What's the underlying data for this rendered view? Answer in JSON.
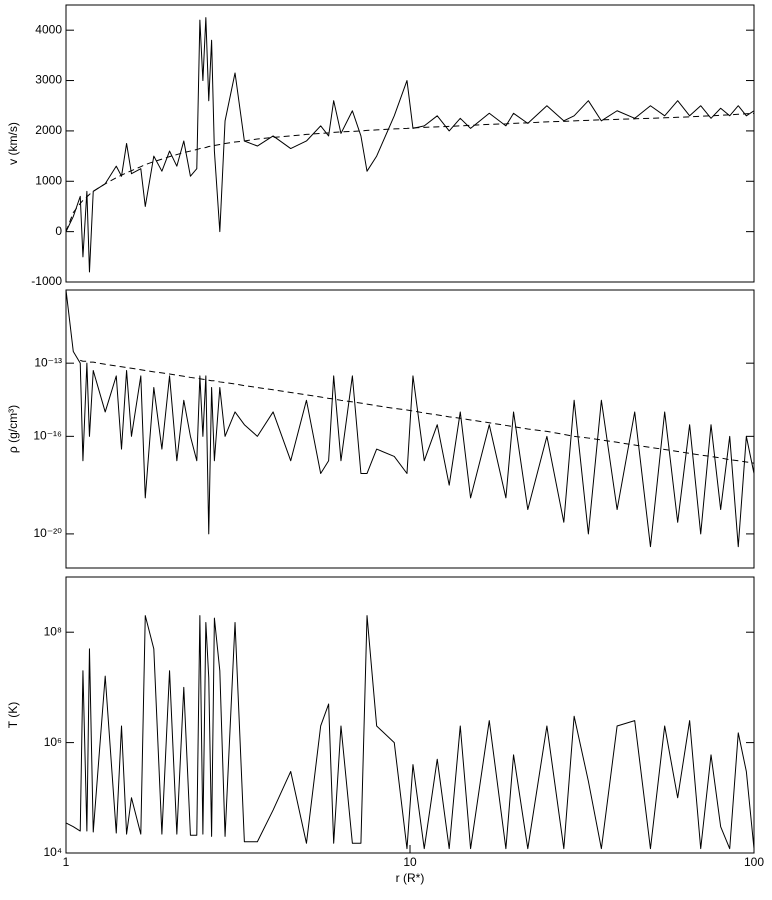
{
  "chart_data": [
    {
      "type": "line",
      "ylabel": "v (km/s)",
      "xscale": "log",
      "xlim": [
        1,
        100
      ],
      "ylim": [
        -1000,
        4500
      ],
      "yticks": [
        -1000,
        0,
        1000,
        2000,
        3000,
        4000
      ],
      "x": [
        1,
        1.05,
        1.1,
        1.12,
        1.15,
        1.17,
        1.2,
        1.3,
        1.4,
        1.45,
        1.5,
        1.55,
        1.65,
        1.7,
        1.8,
        1.9,
        2.0,
        2.1,
        2.2,
        2.3,
        2.4,
        2.45,
        2.5,
        2.55,
        2.6,
        2.65,
        2.7,
        2.8,
        2.9,
        3.1,
        3.3,
        3.6,
        4.0,
        4.5,
        5.0,
        5.5,
        5.8,
        6.0,
        6.3,
        6.8,
        7.2,
        7.5,
        8,
        9,
        9.8,
        10.2,
        11,
        12,
        13,
        14,
        15,
        17,
        19,
        20,
        22,
        25,
        28,
        30,
        33,
        36,
        40,
        45,
        50,
        55,
        60,
        65,
        70,
        75,
        80,
        85,
        90,
        95,
        100
      ],
      "series": [
        {
          "color": "#000000",
          "dash": false,
          "values": [
            0,
            300,
            700,
            -500,
            800,
            -800,
            800,
            950,
            1300,
            1100,
            1750,
            1150,
            1250,
            500,
            1500,
            1200,
            1600,
            1300,
            1800,
            1100,
            1250,
            4200,
            3000,
            4250,
            2600,
            3800,
            1600,
            0,
            2200,
            3150,
            1800,
            1700,
            1900,
            1650,
            1800,
            2100,
            1900,
            2600,
            1950,
            2400,
            1900,
            1200,
            1500,
            2300,
            3000,
            2050,
            2100,
            2300,
            2000,
            2250,
            2050,
            2350,
            2100,
            2350,
            2150,
            2500,
            2200,
            2300,
            2600,
            2200,
            2400,
            2250,
            2500,
            2300,
            2600,
            2300,
            2500,
            2250,
            2450,
            2300,
            2500,
            2300,
            2400
          ]
        },
        {
          "color": "#000000",
          "dash": true,
          "values": [
            0,
            380,
            560,
            620,
            690,
            740,
            800,
            950,
            1070,
            1120,
            1170,
            1210,
            1290,
            1330,
            1390,
            1440,
            1490,
            1530,
            1570,
            1600,
            1630,
            1650,
            1660,
            1670,
            1690,
            1700,
            1710,
            1730,
            1750,
            1780,
            1800,
            1840,
            1870,
            1900,
            1930,
            1950,
            1960,
            1970,
            1980,
            1990,
            2000,
            2010,
            2020,
            2040,
            2050,
            2060,
            2070,
            2080,
            2090,
            2100,
            2110,
            2130,
            2140,
            2150,
            2160,
            2180,
            2190,
            2200,
            2210,
            2220,
            2230,
            2240,
            2250,
            2260,
            2270,
            2280,
            2290,
            2300,
            2310,
            2320,
            2330,
            2340,
            2350
          ]
        }
      ]
    },
    {
      "type": "line",
      "ylabel": "ρ (g/cm³)",
      "xscale": "log",
      "yscale": "log",
      "xlim": [
        1,
        100
      ],
      "ylim": [
        4e-22,
        1e-10
      ],
      "yticks": [
        {
          "value": 1e-13,
          "label": "10⁻¹³"
        },
        {
          "value": 1e-16,
          "label": "10⁻¹⁶"
        },
        {
          "value": 1e-20,
          "label": "10⁻²⁰"
        }
      ],
      "x": [
        1,
        1.05,
        1.1,
        1.12,
        1.15,
        1.17,
        1.2,
        1.3,
        1.4,
        1.45,
        1.5,
        1.55,
        1.65,
        1.7,
        1.8,
        1.9,
        2.0,
        2.1,
        2.2,
        2.3,
        2.4,
        2.45,
        2.5,
        2.55,
        2.6,
        2.65,
        2.7,
        2.8,
        2.9,
        3.1,
        3.3,
        3.6,
        4.0,
        4.5,
        5.0,
        5.5,
        5.8,
        6.0,
        6.3,
        6.8,
        7.2,
        7.5,
        8,
        9,
        9.8,
        10.2,
        11,
        12,
        13,
        14,
        15,
        17,
        19,
        20,
        22,
        25,
        28,
        30,
        33,
        36,
        40,
        45,
        50,
        55,
        60,
        65,
        70,
        75,
        80,
        85,
        90,
        95,
        100
      ],
      "series": [
        {
          "color": "#000000",
          "dash": false,
          "values": [
            1e-10,
            3e-13,
            1e-13,
            1e-17,
            1e-13,
            1e-16,
            5e-14,
            1e-15,
            3e-14,
            3e-17,
            5e-14,
            1e-16,
            3e-14,
            3e-19,
            1e-14,
            3e-17,
            3e-14,
            1e-17,
            3e-15,
            1e-16,
            1e-17,
            3e-14,
            1e-16,
            3e-14,
            1e-20,
            1e-14,
            1e-17,
            1e-14,
            1e-16,
            1e-15,
            3e-16,
            1e-16,
            1e-15,
            1e-17,
            3e-15,
            3e-18,
            1e-17,
            3e-14,
            1e-17,
            3e-14,
            3e-18,
            3e-18,
            3e-17,
            1.5e-17,
            3e-18,
            3e-14,
            1e-17,
            3e-16,
            1e-18,
            1e-15,
            3e-19,
            3e-16,
            3e-19,
            1e-15,
            1e-19,
            1e-16,
            3e-20,
            3e-15,
            1e-20,
            3e-15,
            1e-19,
            1e-15,
            3e-21,
            1e-15,
            3e-20,
            3e-16,
            1e-20,
            3e-16,
            1e-19,
            1e-16,
            3e-21,
            1e-16,
            3e-18
          ]
        },
        {
          "color": "#000000",
          "dash": true,
          "values": [
            null,
            null,
            1.3e-13,
            1.2e-13,
            1.2e-13,
            1.1e-13,
            1.1e-13,
            9e-14,
            7.7e-14,
            7.1e-14,
            6.6e-14,
            6.2e-14,
            5.4e-14,
            5e-14,
            4.4e-14,
            4e-14,
            3.6e-14,
            3.2e-14,
            2.9e-14,
            2.6e-14,
            2.4e-14,
            2.3e-14,
            2.2e-14,
            2.1e-14,
            2e-14,
            1.9e-14,
            1.9e-14,
            1.7e-14,
            1.6e-14,
            1.4e-14,
            1.2e-14,
            1e-14,
            8.1e-15,
            6.3e-15,
            5e-15,
            4.1e-15,
            3.6e-15,
            3.4e-15,
            3e-15,
            2.6e-15,
            2.3e-15,
            2.1e-15,
            1.8e-15,
            1.4e-15,
            1.2e-15,
            1.1e-15,
            9.1e-16,
            7.6e-16,
            6.3e-16,
            5.5e-16,
            4.7e-16,
            3.6e-16,
            2.8e-16,
            2.5e-16,
            2e-16,
            1.6e-16,
            1.2e-16,
            1e-16,
            8.5e-17,
            7.1e-17,
            5.7e-17,
            4.4e-17,
            3.5e-17,
            2.9e-17,
            2.4e-17,
            2e-17,
            1.7e-17,
            1.5e-17,
            1.3e-17,
            1.1e-17,
            1e-17,
            8.9e-18,
            7.9e-18
          ]
        }
      ]
    },
    {
      "type": "line",
      "ylabel": "T (K)",
      "xlabel": "r (R*)",
      "xscale": "log",
      "yscale": "log",
      "xlim": [
        1,
        100
      ],
      "ylim": [
        10000.0,
        1000000000.0
      ],
      "xticks": [
        1,
        10,
        100
      ],
      "yticks": [
        {
          "value": 10000,
          "label": "10⁴"
        },
        {
          "value": 1000000,
          "label": "10⁶"
        },
        {
          "value": 100000000,
          "label": "10⁸"
        }
      ],
      "x": [
        1,
        1.05,
        1.1,
        1.12,
        1.15,
        1.17,
        1.2,
        1.3,
        1.4,
        1.45,
        1.5,
        1.55,
        1.65,
        1.7,
        1.8,
        1.9,
        2.0,
        2.1,
        2.2,
        2.3,
        2.4,
        2.45,
        2.5,
        2.55,
        2.6,
        2.65,
        2.7,
        2.8,
        2.9,
        3.1,
        3.3,
        3.6,
        4.0,
        4.5,
        5.0,
        5.5,
        5.8,
        6.0,
        6.3,
        6.8,
        7.2,
        7.5,
        8,
        9,
        9.8,
        10.2,
        11,
        12,
        13,
        14,
        15,
        17,
        19,
        20,
        22,
        25,
        28,
        30,
        33,
        36,
        40,
        45,
        50,
        55,
        60,
        65,
        70,
        75,
        80,
        85,
        90,
        95,
        100
      ],
      "series": [
        {
          "color": "#000000",
          "dash": false,
          "values": [
            35000,
            30000,
            25000,
            20000000,
            25000,
            50000000,
            24000,
            16000000,
            23000,
            2000000,
            22000,
            100000,
            22000,
            200000000,
            50000000,
            22000,
            20000000,
            22000,
            10000000,
            21000,
            21000,
            200000000,
            22000,
            150000000,
            15000000,
            20000,
            180000000,
            20000000,
            20000,
            150000000,
            16000,
            16000,
            60000,
            300000,
            15000,
            2000000,
            5000000,
            15000,
            2000000,
            15000,
            15000,
            200000000,
            2000000,
            1000000,
            12000,
            400000,
            12000,
            500000,
            12000,
            2000000,
            12000,
            2500000,
            12000,
            600000,
            12000,
            2000000,
            12000,
            3000000,
            200000,
            12000,
            2000000,
            2500000,
            12000,
            2000000,
            100000,
            2500000,
            12000,
            600000,
            30000,
            12000,
            1500000,
            300000,
            12000
          ]
        }
      ]
    }
  ]
}
